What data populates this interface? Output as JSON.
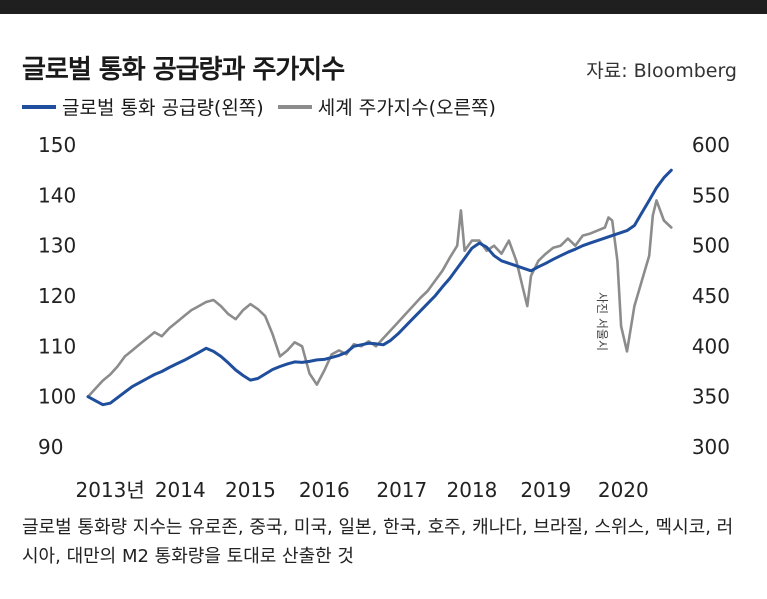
{
  "header": {
    "title": "글로벌 통화 공급량과 주가지수",
    "source": "자료: Bloomberg"
  },
  "legend": [
    {
      "label": "글로벌 통화 공급량(왼쪽)",
      "color": "#1f4e9c"
    },
    {
      "label": "세계 주가지수(오른쪽)",
      "color": "#8c8c8c"
    }
  ],
  "photo_credit": "사진 서울시",
  "footnote": "글로벌 통화량 지수는 유로존, 중국, 미국, 일본, 한국, 호주, 캐나다, 브라질, 스위스, 멕시코, 러시아, 대만의 M2 통화량을 토대로 산출한 것",
  "chart_data": {
    "type": "line",
    "x_tick_labels": [
      "2013년",
      "2014",
      "2015",
      "2016",
      "2017",
      "2018",
      "2019",
      "2020"
    ],
    "left_axis": {
      "ticks": [
        "150",
        "140",
        "130",
        "120",
        "110",
        "100",
        "90"
      ],
      "ylim": [
        90,
        150
      ]
    },
    "right_axis": {
      "ticks": [
        "600",
        "550",
        "500",
        "450",
        "400",
        "350",
        "300"
      ],
      "ylim": [
        300,
        600
      ]
    },
    "xlim": [
      2013.0,
      2020.95
    ],
    "series": [
      {
        "name": "글로벌 통화 공급량(왼쪽)",
        "axis": "left",
        "color": "#1f4e9c",
        "x": [
          2013.0,
          2013.1,
          2013.2,
          2013.3,
          2013.4,
          2013.5,
          2013.6,
          2013.7,
          2013.8,
          2013.9,
          2014.0,
          2014.1,
          2014.2,
          2014.3,
          2014.4,
          2014.5,
          2014.6,
          2014.7,
          2014.8,
          2014.9,
          2015.0,
          2015.1,
          2015.2,
          2015.3,
          2015.4,
          2015.5,
          2015.6,
          2015.7,
          2015.8,
          2015.9,
          2016.0,
          2016.1,
          2016.2,
          2016.3,
          2016.4,
          2016.5,
          2016.6,
          2016.7,
          2016.8,
          2016.9,
          2017.0,
          2017.1,
          2017.2,
          2017.3,
          2017.4,
          2017.5,
          2017.6,
          2017.7,
          2017.8,
          2017.9,
          2018.0,
          2018.1,
          2018.2,
          2018.3,
          2018.4,
          2018.5,
          2018.6,
          2018.7,
          2018.8,
          2018.9,
          2019.0,
          2019.1,
          2019.2,
          2019.3,
          2019.4,
          2019.5,
          2019.6,
          2019.7,
          2019.8,
          2019.9,
          2020.0,
          2020.1,
          2020.2,
          2020.3,
          2020.4,
          2020.5,
          2020.6,
          2020.7,
          2020.8,
          2020.9
        ],
        "values": [
          100,
          99.2,
          98.4,
          98.7,
          99.8,
          100.9,
          102,
          102.8,
          103.6,
          104.4,
          105,
          105.8,
          106.5,
          107.2,
          108,
          108.8,
          109.6,
          109,
          108,
          106.7,
          105.3,
          104.2,
          103.3,
          103.6,
          104.5,
          105.4,
          106,
          106.5,
          106.9,
          106.8,
          107,
          107.3,
          107.4,
          107.8,
          108.2,
          108.8,
          110,
          110.3,
          110.6,
          110.5,
          110.3,
          111.2,
          112.5,
          114,
          115.5,
          117,
          118.5,
          120,
          121.8,
          123.5,
          125.5,
          127.5,
          129.5,
          130.5,
          129.7,
          128,
          127,
          126.5,
          126,
          125.5,
          125,
          125.8,
          126.5,
          127.3,
          128,
          128.7,
          129.3,
          130,
          130.5,
          131,
          131.5,
          132,
          132.5,
          133,
          134,
          136.5,
          139,
          141.5,
          143.5,
          145
        ]
      },
      {
        "name": "세계 주가지수(오른쪽)",
        "axis": "right",
        "color": "#8c8c8c",
        "x": [
          2013.0,
          2013.1,
          2013.2,
          2013.3,
          2013.4,
          2013.5,
          2013.6,
          2013.7,
          2013.8,
          2013.9,
          2014.0,
          2014.1,
          2014.2,
          2014.3,
          2014.4,
          2014.5,
          2014.6,
          2014.7,
          2014.8,
          2014.9,
          2015.0,
          2015.1,
          2015.2,
          2015.3,
          2015.4,
          2015.5,
          2015.6,
          2015.7,
          2015.8,
          2015.9,
          2016.0,
          2016.1,
          2016.2,
          2016.3,
          2016.4,
          2016.5,
          2016.6,
          2016.7,
          2016.8,
          2016.9,
          2017.0,
          2017.1,
          2017.2,
          2017.3,
          2017.4,
          2017.5,
          2017.6,
          2017.7,
          2017.8,
          2017.9,
          2018.0,
          2018.05,
          2018.1,
          2018.2,
          2018.3,
          2018.4,
          2018.5,
          2018.6,
          2018.7,
          2018.8,
          2018.9,
          2018.95,
          2019.0,
          2019.1,
          2019.2,
          2019.3,
          2019.4,
          2019.5,
          2019.6,
          2019.7,
          2019.8,
          2019.9,
          2020.0,
          2020.05,
          2020.1,
          2020.17,
          2020.22,
          2020.3,
          2020.4,
          2020.5,
          2020.6,
          2020.65,
          2020.7,
          2020.8,
          2020.9
        ],
        "values": [
          350,
          358,
          366,
          372,
          380,
          390,
          396,
          402,
          408,
          414,
          410,
          418,
          424,
          430,
          436,
          440,
          444,
          446,
          440,
          432,
          427,
          436,
          442,
          437,
          430,
          412,
          390,
          396,
          404,
          400,
          373,
          362,
          376,
          392,
          396,
          392,
          402,
          400,
          405,
          400,
          408,
          416,
          424,
          432,
          440,
          448,
          455,
          465,
          475,
          488,
          500,
          535,
          495,
          505,
          505,
          495,
          500,
          492,
          505,
          485,
          455,
          440,
          470,
          485,
          492,
          498,
          500,
          507,
          500,
          510,
          512,
          515,
          518,
          528,
          525,
          485,
          420,
          395,
          440,
          465,
          490,
          530,
          545,
          525,
          518
        ]
      }
    ]
  }
}
